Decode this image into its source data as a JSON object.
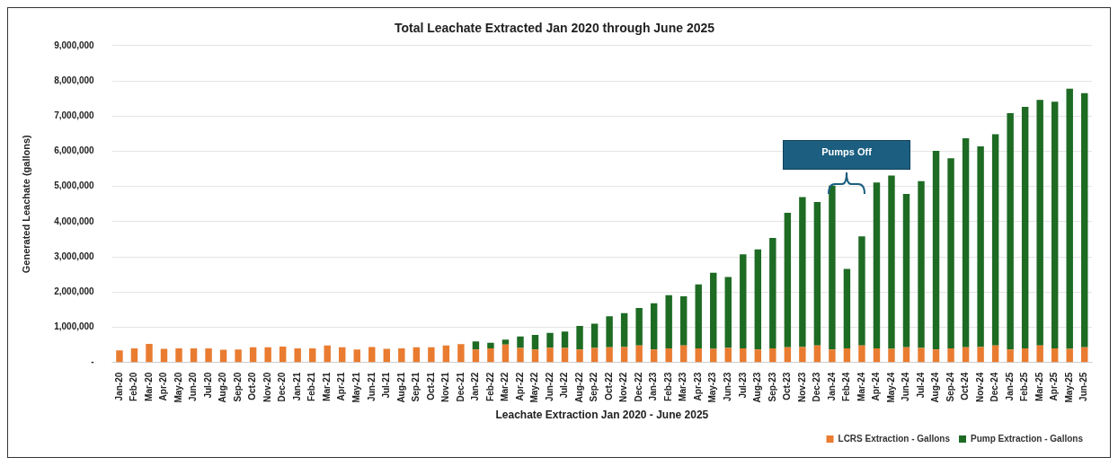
{
  "chart_data": {
    "type": "bar",
    "title": "Total Leachate Extracted Jan 2020 through June 2025",
    "xlabel": "Leachate Extraction Jan 2020 - June 2025",
    "ylabel": "Generated Leachate (gallons)",
    "categories": [
      "Jan-20",
      "Feb-20",
      "Mar-20",
      "Apr-20",
      "May-20",
      "Jun-20",
      "Jul-20",
      "Aug-20",
      "Sep-20",
      "Oct-20",
      "Nov-20",
      "Dec-20",
      "Jan-21",
      "Feb-21",
      "Mar-21",
      "Apr-21",
      "May-21",
      "Jun-21",
      "Jul-21",
      "Aug-21",
      "Sep-21",
      "Oct-21",
      "Nov-21",
      "Dec-21",
      "Jan-22",
      "Feb-22",
      "Mar-22",
      "Apr-22",
      "May-22",
      "Jun-22",
      "Jul-22",
      "Aug-22",
      "Sep-22",
      "Oct-22",
      "Nov-22",
      "Dec-22",
      "Jan-23",
      "Feb-23",
      "Mar-23",
      "Apr-23",
      "May-23",
      "Jun-23",
      "Jul-23",
      "Aug-23",
      "Sep-23",
      "Oct-23",
      "Nov-23",
      "Dec-23",
      "Jan-24",
      "Feb-24",
      "Mar-24",
      "Apr-24",
      "May-24",
      "Jun-24",
      "Jul-24",
      "Aug-24",
      "Sep-24",
      "Oct-24",
      "Nov-24",
      "Dec-24",
      "Jan-25",
      "Feb-25",
      "Mar-25",
      "Apr-25",
      "May-25",
      "Jun-25"
    ],
    "stacked": true,
    "series": [
      {
        "name": "LCRS Extraction - Gallons",
        "color": "#e97c30",
        "values": [
          340000,
          400000,
          530000,
          390000,
          400000,
          400000,
          400000,
          360000,
          370000,
          430000,
          430000,
          450000,
          400000,
          400000,
          480000,
          430000,
          370000,
          440000,
          390000,
          400000,
          430000,
          430000,
          480000,
          520000,
          370000,
          400000,
          510000,
          410000,
          370000,
          420000,
          410000,
          370000,
          410000,
          430000,
          440000,
          480000,
          370000,
          400000,
          480000,
          400000,
          390000,
          410000,
          400000,
          370000,
          400000,
          430000,
          440000,
          480000,
          370000,
          400000,
          480000,
          400000,
          390000,
          430000,
          410000,
          370000,
          400000,
          430000,
          440000,
          480000,
          370000,
          400000,
          480000,
          400000,
          390000,
          430000
        ]
      },
      {
        "name": "Pump Extraction - Gallons",
        "color": "#1e6b24",
        "values": [
          null,
          null,
          null,
          null,
          null,
          null,
          null,
          null,
          null,
          null,
          null,
          null,
          null,
          null,
          null,
          null,
          null,
          null,
          null,
          null,
          null,
          null,
          null,
          null,
          230000,
          160000,
          140000,
          330000,
          410000,
          420000,
          470000,
          670000,
          690000,
          880000,
          960000,
          1070000,
          1310000,
          1510000,
          1400000,
          1820000,
          2160000,
          2020000,
          2670000,
          2840000,
          3140000,
          3820000,
          4260000,
          4080000,
          4650000,
          2260000,
          3100000,
          4710000,
          4920000,
          4360000,
          4740000,
          5640000,
          5400000,
          5940000,
          5700000,
          6000000,
          6710000,
          6860000,
          6980000,
          7010000,
          7390000,
          7220000
        ]
      }
    ],
    "ylim": [
      0,
      9000000
    ],
    "yticks": [
      {
        "value": 0,
        "label": "-"
      },
      {
        "value": 1000000,
        "label": "1,000,000"
      },
      {
        "value": 2000000,
        "label": "2,000,000"
      },
      {
        "value": 3000000,
        "label": "3,000,000"
      },
      {
        "value": 4000000,
        "label": "4,000,000"
      },
      {
        "value": 5000000,
        "label": "5,000,000"
      },
      {
        "value": 6000000,
        "label": "6,000,000"
      },
      {
        "value": 7000000,
        "label": "7,000,000"
      },
      {
        "value": 8000000,
        "label": "8,000,000"
      },
      {
        "value": 9000000,
        "label": "9,000,000"
      }
    ],
    "grid": "y",
    "legend": "bottom right",
    "annotations": [
      "Pumps Off"
    ]
  }
}
